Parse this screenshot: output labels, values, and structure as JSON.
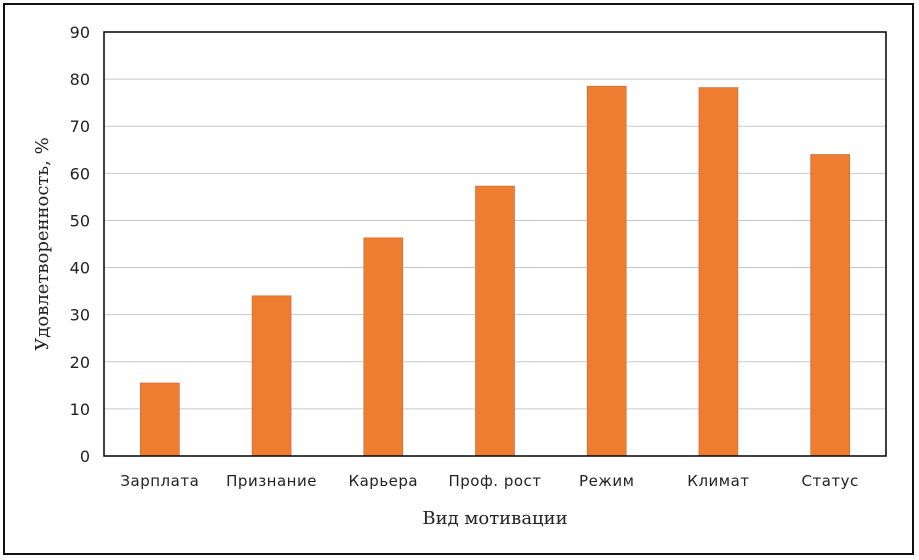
{
  "chart_data": {
    "type": "bar",
    "title": "",
    "xlabel": "Вид мотивации",
    "ylabel": "Удовлетворенность, %",
    "ylim": [
      0,
      90
    ],
    "yticks": [
      0,
      10,
      20,
      30,
      40,
      50,
      60,
      70,
      80,
      90
    ],
    "grid": true,
    "legend": "none",
    "categories": [
      "Зарплата",
      "Признание",
      "Карьера",
      "Проф. рост",
      "Режим",
      "Климат",
      "Статус"
    ],
    "values": [
      15.5,
      34,
      46.3,
      57.3,
      78.5,
      78.2,
      64
    ],
    "colors": {
      "bar": "#EE7D31",
      "bar_edge": "#C8652A",
      "grid": "#c9c9c9",
      "axis": "#000000"
    }
  }
}
